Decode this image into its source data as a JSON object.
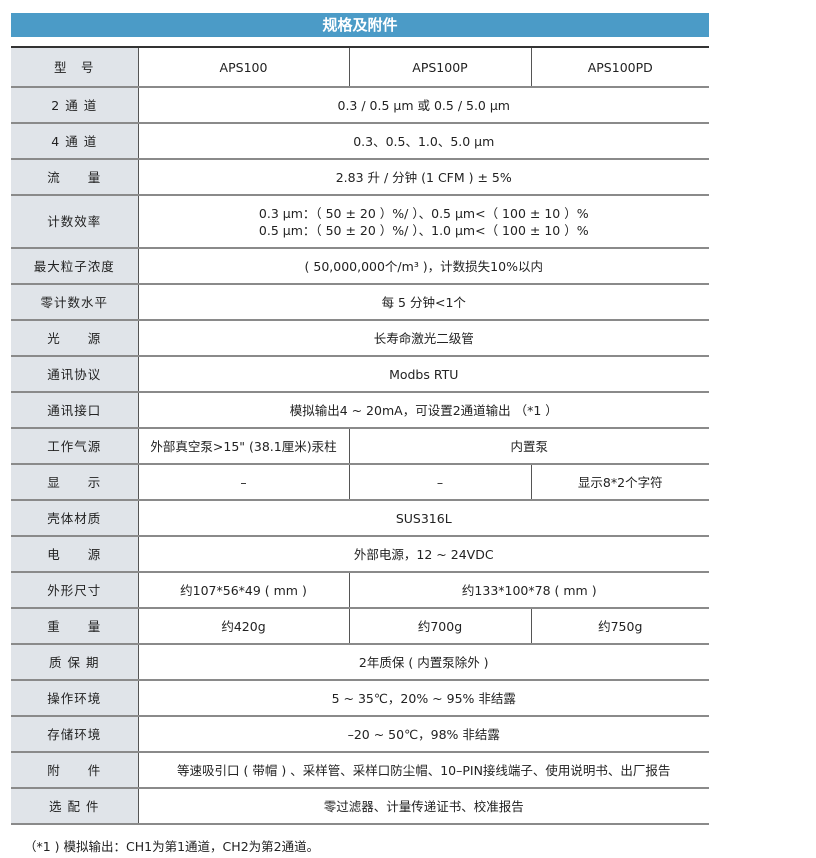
{
  "title": "规格及附件",
  "rows": [
    {
      "label": "型　号",
      "cells": [
        "APS100",
        "APS100P",
        "APS100PD"
      ]
    },
    {
      "label": "2 通 道",
      "cells": [
        "0.3 / 0.5 μm 或 0.5 / 5.0 μm"
      ]
    },
    {
      "label": "4 通 道",
      "cells": [
        "0.3、0.5、1.0、5.0 μm"
      ]
    },
    {
      "label": "流　　量",
      "cells": [
        "2.83 升 / 分钟 (1 CFM ) ± 5%"
      ]
    },
    {
      "label": "计数效率",
      "cells": [
        "0.3 μm：（ 50 ± 20 ）%/ ）、0.5 μm<（ 100 ± 10 ）%"
      ],
      "cells2": [
        "0.5 μm：（ 50 ± 20 ）%/ ）、1.0 μm<（ 100 ± 10 ）%"
      ]
    },
    {
      "label": "最大粒子浓度",
      "cells": [
        "( 50,000,000个/m³ )，计数损失10%以内"
      ]
    },
    {
      "label": "零计数水平",
      "cells": [
        "每 5 分钟<1个"
      ]
    },
    {
      "label": "光　　源",
      "cells": [
        "长寿命激光二级管"
      ]
    },
    {
      "label": "通讯协议",
      "cells": [
        "Modbs RTU"
      ]
    },
    {
      "label": "通讯接口",
      "cells": [
        "模拟输出4 ~ 20mA，可设置2通道输出 （*1 ）"
      ]
    },
    {
      "label": "工作气源",
      "cells": [
        "外部真空泵>15\" (38.1厘米)汞柱",
        "内置泵"
      ]
    },
    {
      "label": "显　　示",
      "cells": [
        "–",
        "–",
        "显示8*2个字符"
      ]
    },
    {
      "label": "壳体材质",
      "cells": [
        "SUS316L"
      ]
    },
    {
      "label": "电　　源",
      "cells": [
        "外部电源，12 ~ 24VDC"
      ]
    },
    {
      "label": "外形尺寸",
      "cells": [
        "约107*56*49 ( mm )",
        "约133*100*78 ( mm )"
      ]
    },
    {
      "label": "重　　量",
      "cells": [
        "约420g",
        "约700g",
        "约750g"
      ]
    },
    {
      "label": "质 保 期",
      "cells": [
        "2年质保 ( 内置泵除外 )"
      ]
    },
    {
      "label": "操作环境",
      "cells": [
        "5 ~ 35℃，20% ~ 95% 非结露"
      ]
    },
    {
      "label": "存储环境",
      "cells": [
        "–20 ~ 50℃，98% 非结露"
      ]
    },
    {
      "label": "附　　件",
      "cells": [
        "等速吸引口 ( 带帽 ) 、采样管、采样口防尘帽、10–PIN接线端子、使用说明书、出厂报告"
      ]
    },
    {
      "label": "选 配 件",
      "cells": [
        "零过滤器、计量传递证书、校准报告"
      ]
    }
  ],
  "footnote": "（*1 ) 模拟输出：CH1为第1通道，CH2为第2通道。"
}
